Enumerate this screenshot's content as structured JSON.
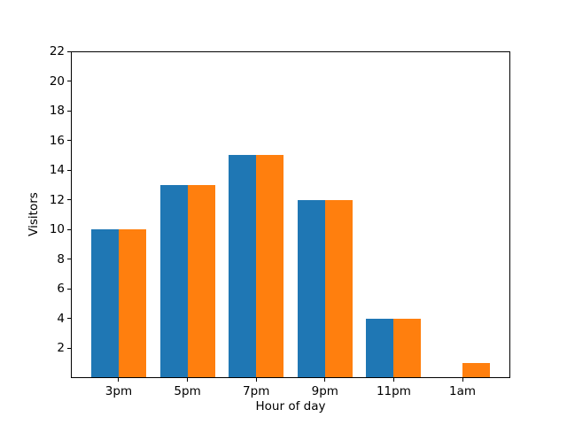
{
  "chart_data": {
    "type": "bar",
    "title": "",
    "xlabel": "Hour of day",
    "ylabel": "Visitors",
    "categories": [
      "3pm",
      "5pm",
      "7pm",
      "9pm",
      "11pm",
      "1am"
    ],
    "series": [
      {
        "name": "series-1-blue",
        "color": "#1f77b4",
        "values": [
          10,
          13,
          15,
          12,
          4,
          0
        ]
      },
      {
        "name": "series-2-orange",
        "color": "#ff7f0e",
        "values": [
          10,
          13,
          15,
          12,
          4,
          1
        ]
      }
    ],
    "ylim": [
      0,
      22
    ],
    "yticks": [
      2,
      4,
      6,
      8,
      10,
      12,
      14,
      16,
      18,
      20,
      22
    ],
    "bar_width": 0.4,
    "bar_offsets": [
      -0.2,
      0.2
    ],
    "xlim": [
      -0.695,
      5.695
    ],
    "grid": false,
    "legend": null,
    "background_color": "#ffffff",
    "axis_color": "#000000"
  }
}
